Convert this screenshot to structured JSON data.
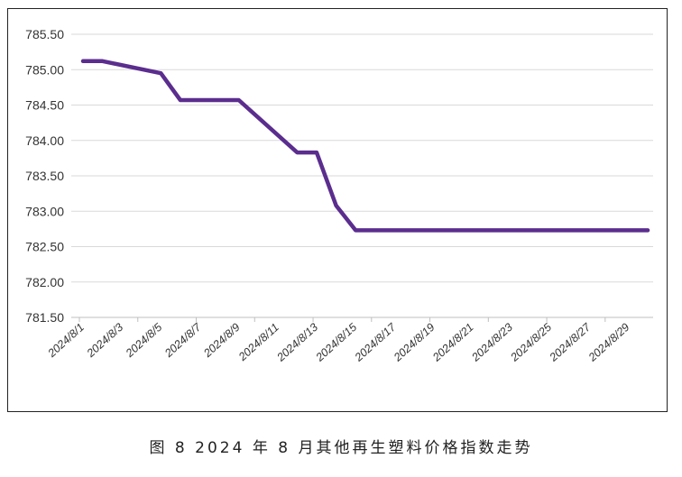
{
  "caption": "图 8  2024 年 8 月其他再生塑料价格指数走势",
  "chart_data": {
    "type": "line",
    "title": "",
    "xlabel": "",
    "ylabel": "",
    "ylim": [
      781.5,
      785.5
    ],
    "y_ticks": [
      "785.50",
      "785.00",
      "784.50",
      "784.00",
      "783.50",
      "783.00",
      "782.50",
      "782.00",
      "781.50"
    ],
    "x_tick_labels": [
      "2024/8/1",
      "2024/8/3",
      "2024/8/5",
      "2024/8/7",
      "2024/8/9",
      "2024/8/11",
      "2024/8/13",
      "2024/8/15",
      "2024/8/17",
      "2024/8/19",
      "2024/8/21",
      "2024/8/23",
      "2024/8/25",
      "2024/8/27",
      "2024/8/29"
    ],
    "line_color": "#5b2d8e",
    "grid": true,
    "series": [
      {
        "name": "",
        "x": [
          "2024/8/1",
          "2024/8/2",
          "2024/8/5",
          "2024/8/6",
          "2024/8/9",
          "2024/8/12",
          "2024/8/13",
          "2024/8/14",
          "2024/8/15",
          "2024/8/16",
          "2024/8/17",
          "2024/8/18",
          "2024/8/19",
          "2024/8/20",
          "2024/8/21",
          "2024/8/22",
          "2024/8/23",
          "2024/8/24",
          "2024/8/25",
          "2024/8/26",
          "2024/8/27",
          "2024/8/28",
          "2024/8/29",
          "2024/8/30"
        ],
        "values": [
          785.12,
          785.12,
          784.95,
          784.57,
          784.57,
          783.83,
          783.83,
          783.08,
          782.73,
          782.73,
          782.73,
          782.73,
          782.73,
          782.73,
          782.73,
          782.73,
          782.73,
          782.73,
          782.73,
          782.73,
          782.73,
          782.73,
          782.73,
          782.73
        ]
      }
    ]
  }
}
